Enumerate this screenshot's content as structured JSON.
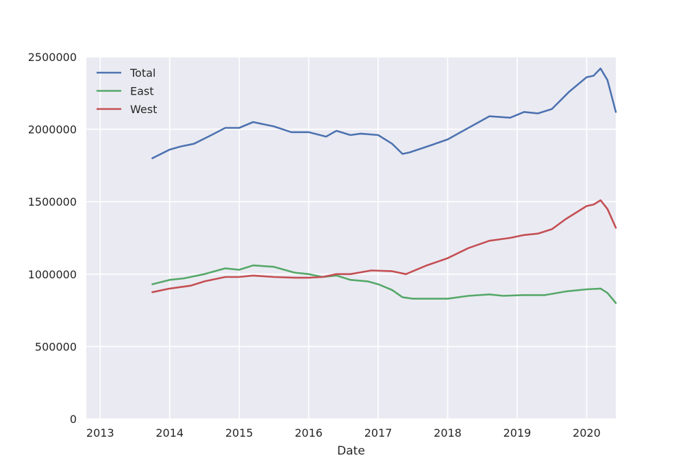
{
  "chart_data": {
    "type": "line",
    "title": "",
    "xlabel": "Date",
    "ylabel": "",
    "xlim": [
      2012.8,
      2020.42
    ],
    "ylim": [
      0,
      2500000
    ],
    "x_ticks": [
      2013,
      2014,
      2015,
      2016,
      2017,
      2018,
      2019,
      2020
    ],
    "x_tick_labels": [
      "2013",
      "2014",
      "2015",
      "2016",
      "2017",
      "2018",
      "2019",
      "2020"
    ],
    "y_ticks": [
      0,
      500000,
      1000000,
      1500000,
      2000000,
      2500000
    ],
    "y_tick_labels": [
      "0",
      "500000",
      "1000000",
      "1500000",
      "2000000",
      "2500000"
    ],
    "grid": true,
    "legend_position": "top-left",
    "series": [
      {
        "name": "Total",
        "color": "#4c72b0",
        "x": [
          2013.75,
          2014.0,
          2014.15,
          2014.35,
          2014.6,
          2014.8,
          2015.0,
          2015.2,
          2015.5,
          2015.75,
          2016.0,
          2016.25,
          2016.4,
          2016.6,
          2016.75,
          2017.0,
          2017.2,
          2017.35,
          2017.45,
          2017.7,
          2018.0,
          2018.3,
          2018.6,
          2018.9,
          2019.1,
          2019.3,
          2019.5,
          2019.75,
          2020.0,
          2020.1,
          2020.2,
          2020.3,
          2020.42
        ],
        "values": [
          1800000,
          1860000,
          1880000,
          1900000,
          1960000,
          2010000,
          2010000,
          2050000,
          2020000,
          1980000,
          1980000,
          1950000,
          1990000,
          1960000,
          1970000,
          1960000,
          1900000,
          1830000,
          1840000,
          1880000,
          1930000,
          2010000,
          2090000,
          2080000,
          2120000,
          2110000,
          2140000,
          2260000,
          2360000,
          2370000,
          2420000,
          2340000,
          2120000
        ]
      },
      {
        "name": "East",
        "color": "#55a868",
        "x": [
          2013.75,
          2014.0,
          2014.2,
          2014.5,
          2014.8,
          2015.0,
          2015.2,
          2015.5,
          2015.8,
          2016.0,
          2016.2,
          2016.4,
          2016.6,
          2016.85,
          2017.0,
          2017.2,
          2017.35,
          2017.5,
          2017.8,
          2018.0,
          2018.3,
          2018.6,
          2018.8,
          2019.1,
          2019.4,
          2019.7,
          2020.0,
          2020.2,
          2020.3,
          2020.42
        ],
        "values": [
          930000,
          960000,
          970000,
          1000000,
          1040000,
          1030000,
          1060000,
          1050000,
          1010000,
          1000000,
          980000,
          990000,
          960000,
          950000,
          930000,
          890000,
          840000,
          830000,
          830000,
          830000,
          850000,
          860000,
          850000,
          855000,
          855000,
          880000,
          895000,
          900000,
          870000,
          800000
        ]
      },
      {
        "name": "West",
        "color": "#c44e52",
        "x": [
          2013.75,
          2014.0,
          2014.3,
          2014.5,
          2014.8,
          2015.0,
          2015.2,
          2015.5,
          2015.8,
          2016.0,
          2016.2,
          2016.4,
          2016.6,
          2016.9,
          2017.2,
          2017.4,
          2017.7,
          2018.0,
          2018.3,
          2018.6,
          2018.9,
          2019.1,
          2019.3,
          2019.5,
          2019.7,
          2020.0,
          2020.1,
          2020.2,
          2020.3,
          2020.42
        ],
        "values": [
          875000,
          900000,
          920000,
          950000,
          980000,
          980000,
          990000,
          980000,
          975000,
          975000,
          980000,
          1000000,
          1000000,
          1025000,
          1020000,
          1000000,
          1060000,
          1110000,
          1180000,
          1230000,
          1250000,
          1270000,
          1280000,
          1310000,
          1380000,
          1470000,
          1480000,
          1510000,
          1450000,
          1320000
        ]
      }
    ]
  }
}
